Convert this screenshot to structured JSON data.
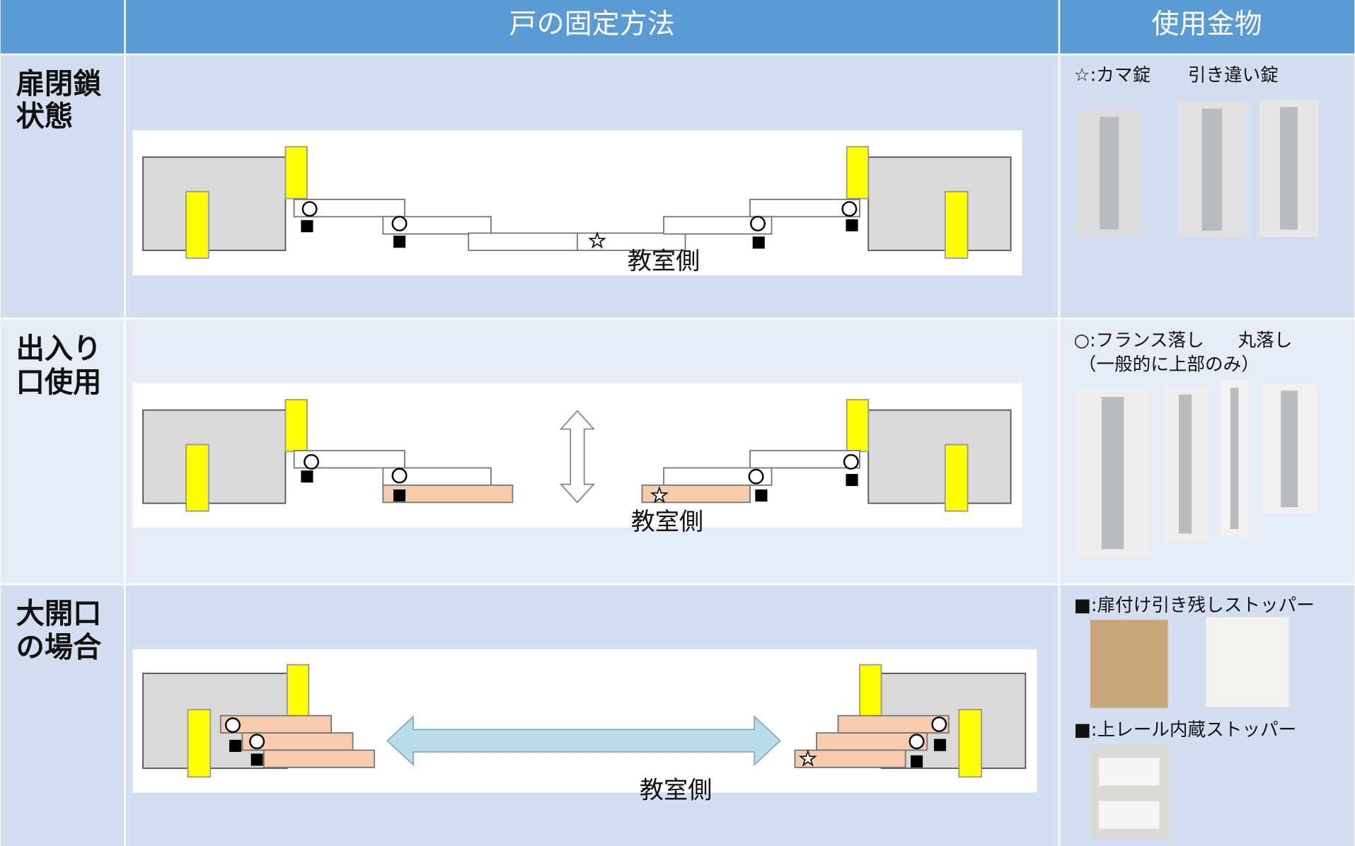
{
  "header": {
    "columns": [
      "戸の固定方法",
      "使用金物"
    ]
  },
  "rows": [
    {
      "label_lines": [
        "扉閉鎖",
        "状態"
      ],
      "side_label": "教室側",
      "hardware": [
        "☆:カマ錠",
        "引き違い錠"
      ]
    },
    {
      "label_lines": [
        "出入り",
        "口使用"
      ],
      "side_label": "教室側",
      "hardware": [
        "○:フランス落し",
        "丸落し",
        "（一般的に上部のみ）"
      ]
    },
    {
      "label_lines": [
        "大開口",
        "の場合"
      ],
      "side_label": "教室側",
      "hardware": [
        "■:扉付け引き残しストッパー",
        "■:上レール内蔵ストッパー"
      ]
    }
  ]
}
